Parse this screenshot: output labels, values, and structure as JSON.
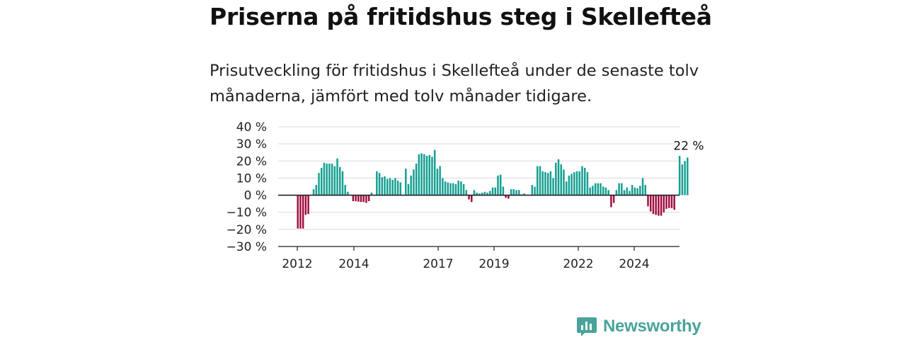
{
  "title": "Priserna på fritidshus steg i Skellefteå",
  "subtitle": "Prisutveckling för fritidshus i Skellefteå under de senaste tolv månaderna, jämfört med tolv månader tidigare.",
  "brand": {
    "name": "Newsworthy",
    "logo_icon": "bar-chart-speech-bubble-icon",
    "color": "#4aa39a"
  },
  "colors": {
    "positive": "#169f93",
    "negative": "#a10e43",
    "grid": "#d9d9d9",
    "zero_line": "#222222"
  },
  "chart_data": {
    "type": "bar",
    "title": "Priserna på fritidshus steg i Skellefteå",
    "ylabel": "",
    "xlabel": "",
    "ylim": [
      -30,
      40
    ],
    "y_ticks": [
      -30,
      -20,
      -10,
      0,
      10,
      20,
      30,
      40
    ],
    "y_tick_labels": [
      "−30 %",
      "−20 %",
      "−10 %",
      "0 %",
      "10 %",
      "20 %",
      "30 %",
      "40 %"
    ],
    "x_ticks": [
      "2012",
      "2014",
      "2017",
      "2019",
      "2022",
      "2024"
    ],
    "grid": true,
    "annotation": {
      "text": "22 %",
      "target": "last bar"
    },
    "series": [
      {
        "values": [
          -19.5,
          -19.5,
          -19.5,
          -11.5,
          -11,
          0,
          3.5,
          6,
          13,
          16,
          19,
          18.5,
          18.5,
          18.5,
          17,
          21.5,
          16.5,
          14,
          6,
          2,
          0,
          -3.5,
          -3.5,
          -3.8,
          -4,
          -4,
          -4.5,
          -3.5,
          1.5,
          0,
          14,
          13,
          10.5,
          11,
          9.5,
          10,
          9,
          10,
          8.5,
          7.5,
          0,
          15.5,
          6.5,
          11.5,
          15,
          18.5,
          24,
          24.5,
          24,
          23,
          23.5,
          22.5,
          26.5,
          15.5,
          17,
          10,
          8,
          7.5,
          7,
          7,
          6.5,
          8.5,
          8,
          6.5,
          3,
          -2.5,
          -4,
          3,
          1.5,
          1,
          1.5,
          2,
          1.5,
          2.5,
          4.5,
          4.5,
          11.5,
          12,
          5,
          -1.5,
          -2,
          3.5,
          3.5,
          3,
          3,
          0.5,
          1,
          0,
          0,
          6,
          5,
          17,
          17,
          14,
          13.5,
          13,
          14,
          10,
          19,
          21,
          18,
          15,
          8,
          11.5,
          12.5,
          13.5,
          14,
          14,
          17,
          16,
          13.5,
          4.5,
          5.5,
          7,
          7,
          7,
          5,
          4.5,
          3,
          -7,
          -4.5,
          3,
          7,
          7,
          3,
          4.5,
          2.5,
          6,
          4.5,
          4,
          5.5,
          10,
          6,
          -6.5,
          -9.5,
          -11,
          -11.5,
          -12,
          -12,
          -10,
          -8,
          -7.5,
          -7.5,
          -8.5,
          0,
          23,
          18,
          20,
          22
        ]
      }
    ]
  }
}
